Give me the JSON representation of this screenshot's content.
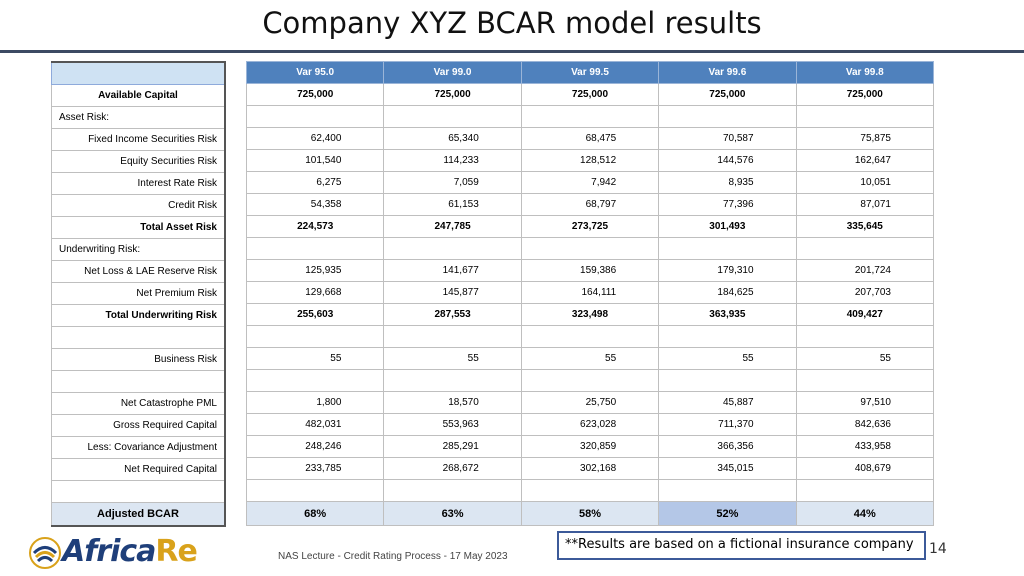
{
  "title": "Company XYZ BCAR model results",
  "columns": [
    "Var 95.0",
    "Var 99.0",
    "Var 99.5",
    "Var 99.6",
    "Var 99.8"
  ],
  "rows": [
    {
      "label": "Available Capital",
      "align": "center",
      "bold": true,
      "values": [
        "725,000",
        "725,000",
        "725,000",
        "725,000",
        "725,000"
      ]
    },
    {
      "label": "Asset Risk:",
      "align": "left",
      "bold": false,
      "values": [
        "",
        "",
        "",
        "",
        ""
      ]
    },
    {
      "label": "Fixed Income Securities Risk",
      "align": "right",
      "bold": false,
      "values": [
        "62,400",
        "65,340",
        "68,475",
        "70,587",
        "75,875"
      ]
    },
    {
      "label": "Equity Securities Risk",
      "align": "right",
      "bold": false,
      "values": [
        "101,540",
        "114,233",
        "128,512",
        "144,576",
        "162,647"
      ]
    },
    {
      "label": "Interest Rate Risk",
      "align": "right",
      "bold": false,
      "values": [
        "6,275",
        "7,059",
        "7,942",
        "8,935",
        "10,051"
      ]
    },
    {
      "label": "Credit Risk",
      "align": "right",
      "bold": false,
      "values": [
        "54,358",
        "61,153",
        "68,797",
        "77,396",
        "87,071"
      ]
    },
    {
      "label": "Total Asset Risk",
      "align": "right",
      "bold": true,
      "values": [
        "224,573",
        "247,785",
        "273,725",
        "301,493",
        "335,645"
      ]
    },
    {
      "label": "Underwriting Risk:",
      "align": "left",
      "bold": false,
      "values": [
        "",
        "",
        "",
        "",
        ""
      ]
    },
    {
      "label": "Net Loss & LAE Reserve Risk",
      "align": "right",
      "bold": false,
      "values": [
        "125,935",
        "141,677",
        "159,386",
        "179,310",
        "201,724"
      ]
    },
    {
      "label": "Net Premium Risk",
      "align": "right",
      "bold": false,
      "values": [
        "129,668",
        "145,877",
        "164,111",
        "184,625",
        "207,703"
      ]
    },
    {
      "label": "Total Underwriting Risk",
      "align": "right",
      "bold": true,
      "values": [
        "255,603",
        "287,553",
        "323,498",
        "363,935",
        "409,427"
      ]
    },
    {
      "label": "",
      "align": "right",
      "bold": false,
      "values": [
        "",
        "",
        "",
        "",
        ""
      ]
    },
    {
      "label": "Business Risk",
      "align": "right",
      "bold": false,
      "values": [
        "55",
        "55",
        "55",
        "55",
        "55"
      ]
    },
    {
      "label": "",
      "align": "right",
      "bold": false,
      "values": [
        "",
        "",
        "",
        "",
        ""
      ]
    },
    {
      "label": "Net Catastrophe PML",
      "align": "right",
      "bold": false,
      "values": [
        "1,800",
        "18,570",
        "25,750",
        "45,887",
        "97,510"
      ]
    },
    {
      "label": "Gross Required Capital",
      "align": "right",
      "bold": false,
      "values": [
        "482,031",
        "553,963",
        "623,028",
        "711,370",
        "842,636"
      ]
    },
    {
      "label": "Less: Covariance Adjustment",
      "align": "right",
      "bold": false,
      "values": [
        "248,246",
        "285,291",
        "320,859",
        "366,356",
        "433,958"
      ]
    },
    {
      "label": "Net Required Capital",
      "align": "right",
      "bold": false,
      "values": [
        "233,785",
        "268,672",
        "302,168",
        "345,015",
        "408,679"
      ]
    },
    {
      "label": "",
      "align": "right",
      "bold": false,
      "values": [
        "",
        "",
        "",
        "",
        ""
      ]
    }
  ],
  "bcar": {
    "label": "Adjusted BCAR",
    "values": [
      "68%",
      "63%",
      "58%",
      "52%",
      "44%"
    ],
    "highlight_index": 3
  },
  "note": "**Results are based on a fictional insurance company",
  "page_number": "14",
  "footer": "NAS Lecture - Credit Rating Process - 17 May 2023",
  "logo": {
    "name": "Africa",
    "suffix": "Re"
  },
  "colors": {
    "header_blue": "#4f81bd",
    "label_header": "#cfe2f3",
    "bcar_row": "#dce6f2",
    "bcar_highlight": "#b4c7e7"
  }
}
